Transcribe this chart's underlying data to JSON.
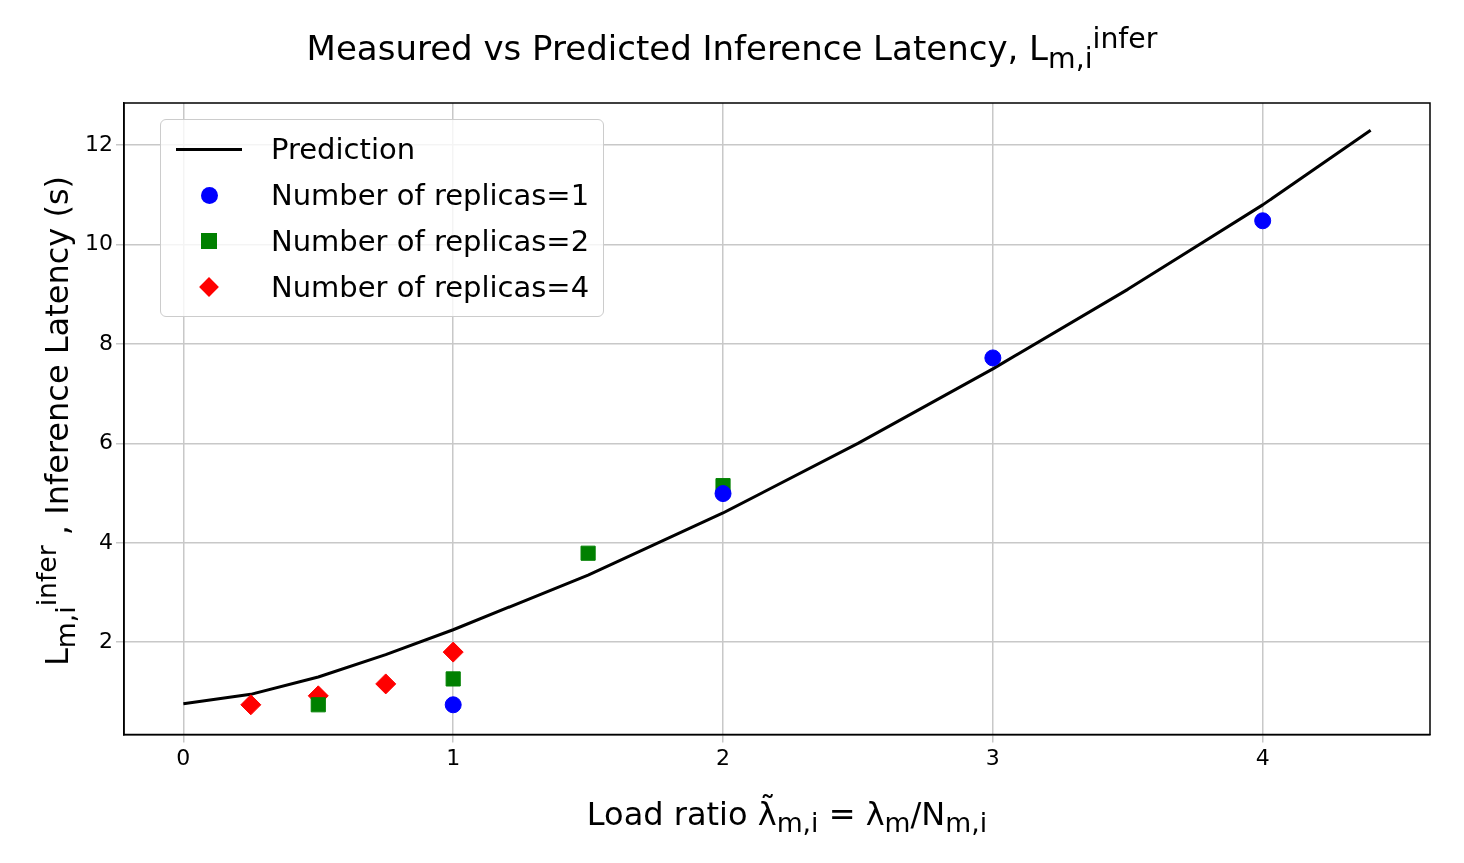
{
  "chart_data": {
    "type": "scatter",
    "title": "Measured vs Predicted Inference Latency, L$_{m,i}$$^{infer}$",
    "xlabel": "Load ratio λ̃$_{m,i}$ = λ$_{m}$/N$_{m,i}$",
    "ylabel": "L$_{m,i}$$^{infer}$ , Inference Latency (s)",
    "series": [
      {
        "name": "Prediction",
        "type": "line",
        "color": "#000000",
        "marker": "none",
        "line_style": "solid",
        "x": [
          0,
          0.25,
          0.5,
          0.75,
          1,
          1.5,
          2,
          2.5,
          3,
          3.5,
          4,
          4.4
        ],
        "values": [
          0.76,
          0.95,
          1.3,
          1.75,
          2.25,
          3.35,
          4.6,
          6.0,
          7.5,
          9.1,
          10.8,
          12.3
        ]
      },
      {
        "name": "Number of replicas=1",
        "color": "#0000ff",
        "marker": "circle",
        "x": [
          1,
          2,
          3,
          4
        ],
        "values": [
          0.74,
          4.99,
          7.72,
          10.48
        ]
      },
      {
        "name": "Number of replicas=2",
        "color": "#008000",
        "marker": "square",
        "x": [
          0.5,
          1,
          1.5,
          2
        ],
        "values": [
          0.74,
          1.26,
          3.79,
          5.15
        ]
      },
      {
        "name": "Number of replicas=4",
        "color": "#ff0000",
        "marker": "diamond",
        "x": [
          0.25,
          0.5,
          0.75,
          1
        ],
        "values": [
          0.74,
          0.92,
          1.16,
          1.8
        ]
      }
    ],
    "xlim": [
      -0.22,
      4.62
    ],
    "xticks": [
      0,
      1,
      2,
      3,
      4
    ],
    "ylim": [
      0.14,
      12.85
    ],
    "yticks": [
      2,
      4,
      6,
      8,
      10,
      12
    ],
    "grid": true,
    "legend": "top left"
  }
}
